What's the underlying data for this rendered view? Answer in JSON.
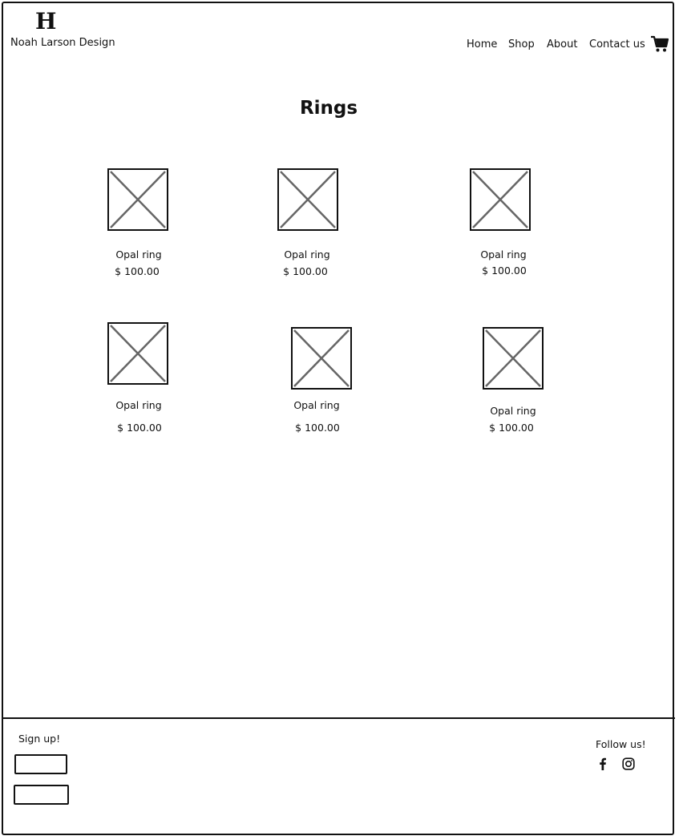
{
  "header": {
    "logo_mark": "H",
    "brand_name": "Noah Larson Design",
    "nav": [
      "Home",
      "Shop",
      "About",
      "Contact us"
    ]
  },
  "main": {
    "title": "Rings",
    "products": [
      {
        "name": "Opal ring",
        "price": "$ 100.00"
      },
      {
        "name": "Opal ring",
        "price": "$ 100.00"
      },
      {
        "name": "Opal ring",
        "price": "$ 100.00"
      },
      {
        "name": "Opal ring",
        "price": "$ 100.00"
      },
      {
        "name": "Opal ring",
        "price": "$ 100.00"
      },
      {
        "name": "Opal ring",
        "price": "$ 100.00"
      }
    ]
  },
  "footer": {
    "signup_label": "Sign up!",
    "follow_label": "Follow us!",
    "social": [
      "facebook-icon",
      "instagram-icon"
    ]
  }
}
